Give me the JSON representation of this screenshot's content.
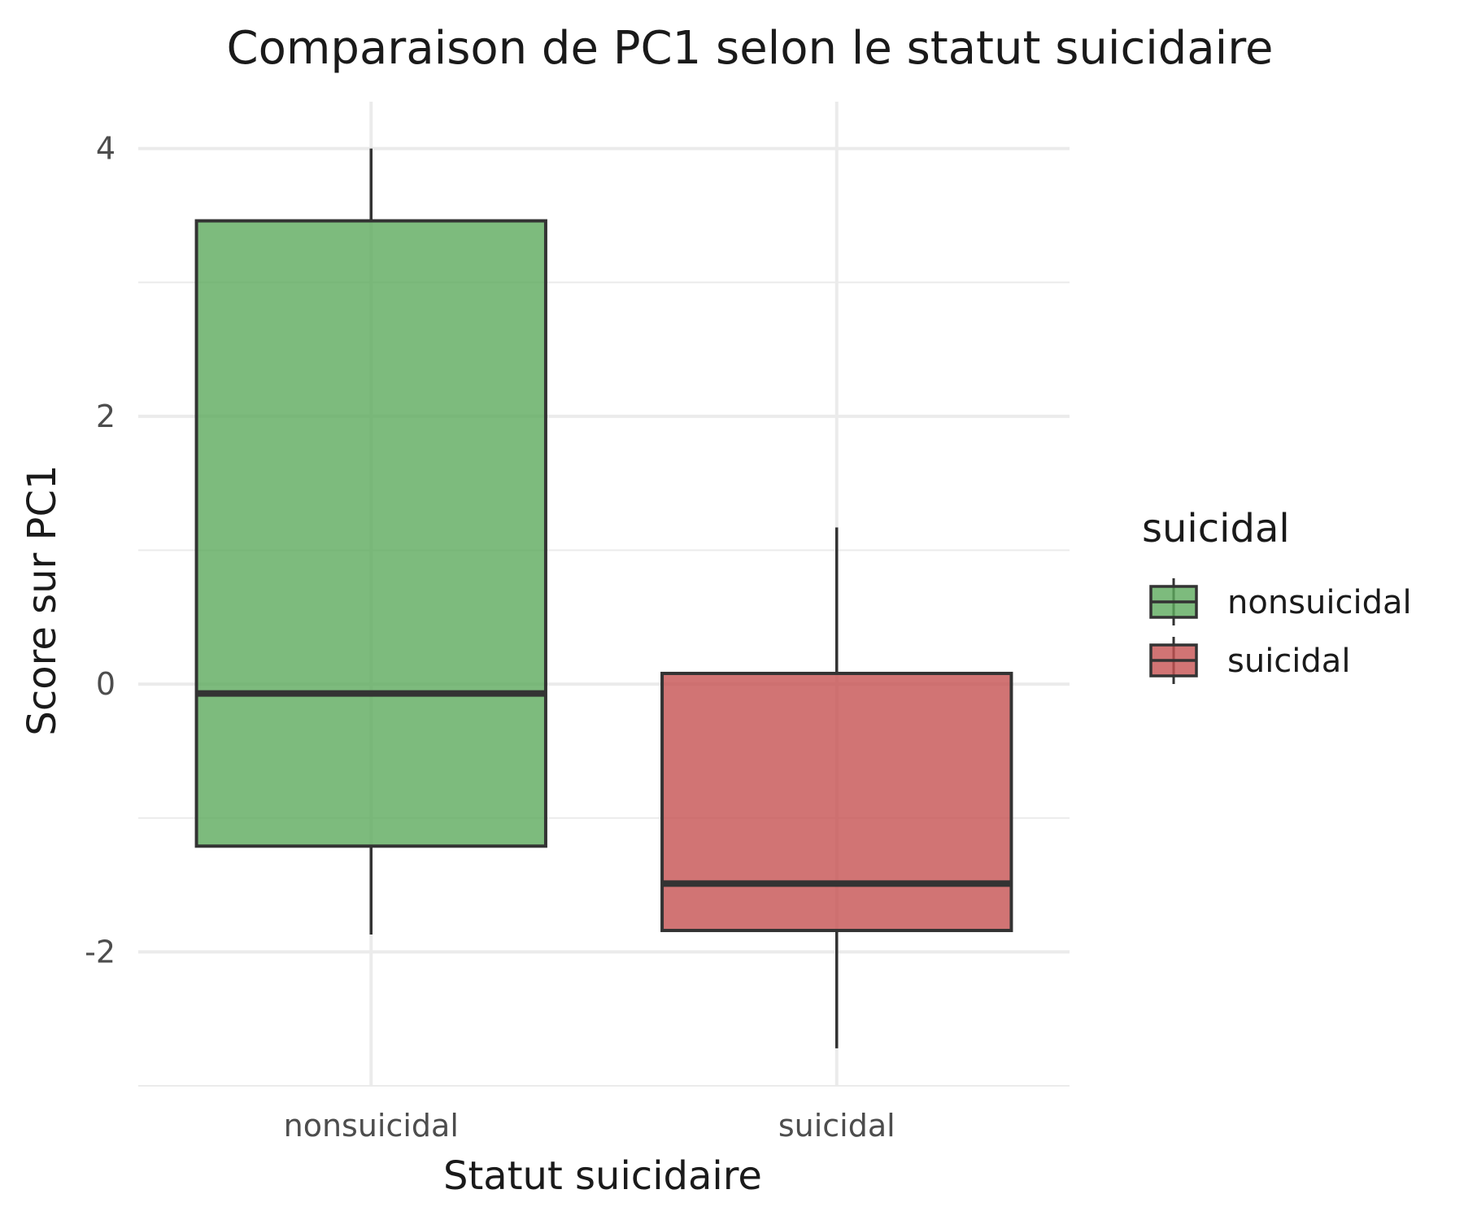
{
  "chart_data": {
    "type": "boxplot",
    "title": "Comparaison de PC1 selon le statut suicidaire",
    "xlabel": "Statut suicidaire",
    "ylabel": "Score sur PC1",
    "categories": [
      "nonsuicidal",
      "suicidal"
    ],
    "ylim": [
      -3.0,
      4.35
    ],
    "y_ticks": [
      -2,
      0,
      2,
      4
    ],
    "y_tick_labels": [
      "-2",
      "0",
      "2",
      "4"
    ],
    "grid": true,
    "legend": {
      "title": "suicidal",
      "placement": "right",
      "entries": [
        "nonsuicidal",
        "suicidal"
      ]
    },
    "series": [
      {
        "category": "nonsuicidal",
        "min": -1.87,
        "q1": -1.21,
        "median": -0.07,
        "q3": 3.46,
        "max": 4.0,
        "color": "#5DAA5D"
      },
      {
        "category": "suicidal",
        "min": -2.72,
        "q1": -1.84,
        "median": -1.49,
        "q3": 0.08,
        "max": 1.17,
        "color": "#C55151"
      }
    ]
  }
}
